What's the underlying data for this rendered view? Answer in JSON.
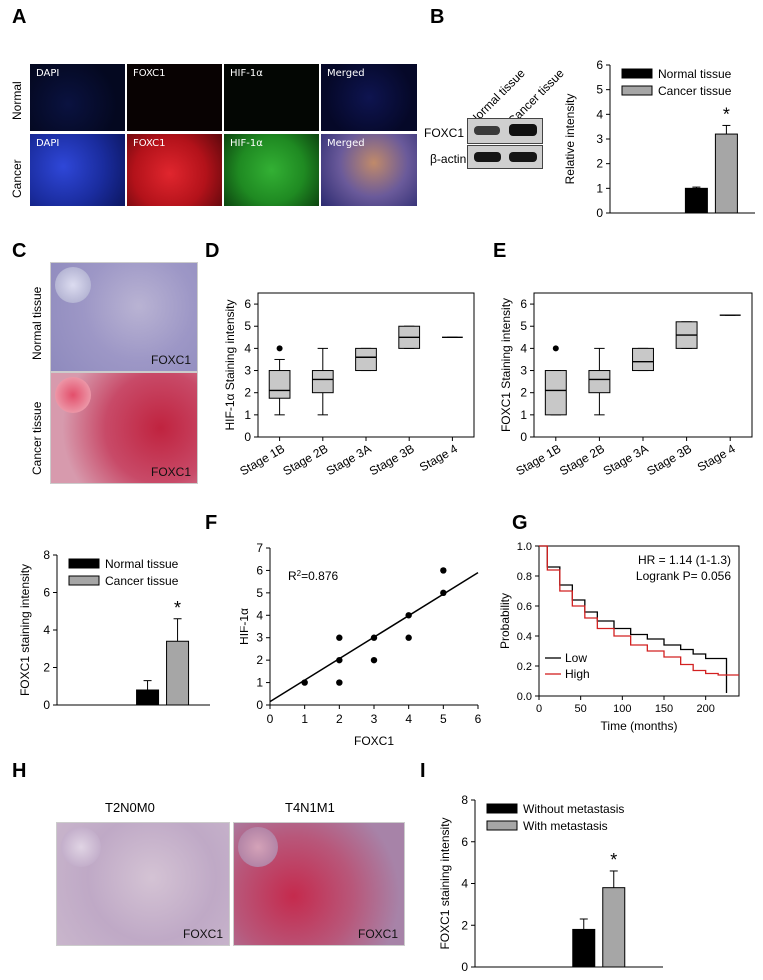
{
  "panels": {
    "A": "A",
    "B": "B",
    "C": "C",
    "D": "D",
    "E": "E",
    "F": "F",
    "G": "G",
    "H": "H",
    "I": "I"
  },
  "panelA": {
    "row_labels": [
      "Normal",
      "Cancer"
    ],
    "col_labels": [
      "DAPI",
      "FOXC1",
      "HIF-1α",
      "Merged"
    ],
    "colors": {
      "dapi": "#1a2c9e",
      "foxc1": "#b3121a",
      "hif": "#1f8a22",
      "merged": "#6a5a9a"
    }
  },
  "panelB": {
    "lanes": [
      "Normal tissue",
      "Cancer tissue"
    ],
    "rows": [
      "FOXC1",
      "β-actin"
    ]
  },
  "panelC": {
    "labels": [
      "Normal tissue",
      "Cancer tissue"
    ],
    "stain": "FOXC1"
  },
  "panelH": {
    "labels": [
      "T2N0M0",
      "T4N1M1"
    ],
    "stain": "FOXC1"
  },
  "panelG": {
    "hr": "HR = 1.14 (1-1.3)",
    "logrank": "Logrank P= 0.056",
    "legend": [
      "Low",
      "High"
    ]
  },
  "chart_data": [
    {
      "id": "B-bar",
      "type": "bar",
      "categories": [
        "Normal tissue",
        "Cancer tissue"
      ],
      "values": [
        1.0,
        3.2
      ],
      "errors": [
        0.05,
        0.35
      ],
      "colors": [
        "#000000",
        "#a6a6a6"
      ],
      "ylabel": "Relative intensity",
      "ylim": [
        0,
        6
      ],
      "yticks": [
        "0",
        "1",
        "2",
        "3",
        "4",
        "5",
        "6"
      ],
      "annotation": "*"
    },
    {
      "id": "C-bar",
      "type": "bar",
      "categories": [
        "Normal tissue",
        "Cancer tissue"
      ],
      "values": [
        0.8,
        3.4
      ],
      "errors": [
        0.5,
        1.2
      ],
      "colors": [
        "#000000",
        "#a6a6a6"
      ],
      "ylabel": "FOXC1 staining intensity",
      "ylim": [
        0,
        8
      ],
      "yticks": [
        "0",
        "2",
        "4",
        "6",
        "8"
      ],
      "annotation": "*"
    },
    {
      "id": "D-box",
      "type": "box",
      "categories": [
        "Stage 1B",
        "Stage 2B",
        "Stage 3A",
        "Stage 3B",
        "Stage 4"
      ],
      "ylabel": "HIF-1α Staining intensity",
      "ylim": [
        0,
        6.5
      ],
      "yticks": [
        "0",
        "1",
        "2",
        "3",
        "4",
        "5",
        "6"
      ],
      "boxes": [
        {
          "min": 1,
          "q1": 1.75,
          "median": 2.1,
          "q3": 3,
          "max": 3.5,
          "outliers": [
            4
          ]
        },
        {
          "min": 1,
          "q1": 2,
          "median": 2.6,
          "q3": 3,
          "max": 4,
          "outliers": []
        },
        {
          "min": 3,
          "q1": 3,
          "median": 3.6,
          "q3": 4,
          "max": 4,
          "outliers": []
        },
        {
          "min": 4,
          "q1": 4,
          "median": 4.5,
          "q3": 5,
          "max": 5,
          "outliers": []
        },
        {
          "min": 4.5,
          "q1": 4.5,
          "median": 4.5,
          "q3": 4.5,
          "max": 4.5,
          "outliers": []
        }
      ]
    },
    {
      "id": "E-box",
      "type": "box",
      "categories": [
        "Stage 1B",
        "Stage 2B",
        "Stage 3A",
        "Stage 3B",
        "Stage 4"
      ],
      "ylabel": "FOXC1 Staining intensity",
      "ylim": [
        0,
        6.5
      ],
      "yticks": [
        "0",
        "1",
        "2",
        "3",
        "4",
        "5",
        "6"
      ],
      "boxes": [
        {
          "min": 1,
          "q1": 1,
          "median": 2.1,
          "q3": 3,
          "max": 3,
          "outliers": [
            4
          ]
        },
        {
          "min": 1,
          "q1": 2,
          "median": 2.6,
          "q3": 3,
          "max": 4,
          "outliers": []
        },
        {
          "min": 3,
          "q1": 3,
          "median": 3.4,
          "q3": 4,
          "max": 4,
          "outliers": []
        },
        {
          "min": 4,
          "q1": 4,
          "median": 4.6,
          "q3": 5.2,
          "max": 5.2,
          "outliers": []
        },
        {
          "min": 5.5,
          "q1": 5.5,
          "median": 5.5,
          "q3": 5.5,
          "max": 5.5,
          "outliers": []
        }
      ]
    },
    {
      "id": "F-scatter",
      "type": "scatter",
      "xlabel": "FOXC1",
      "ylabel": "HIF-1α",
      "xlim": [
        0,
        6
      ],
      "ylim": [
        0,
        7
      ],
      "xticks": [
        "0",
        "1",
        "2",
        "3",
        "4",
        "5",
        "6"
      ],
      "yticks": [
        "0",
        "1",
        "2",
        "3",
        "4",
        "5",
        "6",
        "7"
      ],
      "points": [
        [
          1,
          1
        ],
        [
          2,
          1
        ],
        [
          2,
          2
        ],
        [
          2,
          3
        ],
        [
          3,
          2
        ],
        [
          3,
          3
        ],
        [
          4,
          3
        ],
        [
          4,
          4
        ],
        [
          5,
          5
        ],
        [
          5,
          6
        ]
      ],
      "fit": {
        "x0": 0,
        "y0": 0.15,
        "x1": 6,
        "y1": 5.9
      },
      "r2_prefix": "R",
      "r2_sup": "2",
      "r2_value": "=0.876"
    },
    {
      "id": "G-km",
      "type": "line",
      "xlabel": "Time (months)",
      "ylabel": "Probability",
      "xlim": [
        0,
        240
      ],
      "ylim": [
        0,
        1
      ],
      "xticks": [
        "0",
        "50",
        "100",
        "150",
        "200"
      ],
      "yticks": [
        "0.0",
        "0.2",
        "0.4",
        "0.6",
        "0.8",
        "1.0"
      ],
      "series": [
        {
          "name": "Low",
          "color": "#000000",
          "x": [
            0,
            10,
            25,
            40,
            55,
            70,
            90,
            110,
            130,
            150,
            170,
            185,
            200,
            220,
            225
          ],
          "y": [
            1.0,
            0.86,
            0.74,
            0.64,
            0.56,
            0.5,
            0.45,
            0.41,
            0.38,
            0.34,
            0.31,
            0.28,
            0.25,
            0.25,
            0.02
          ]
        },
        {
          "name": "High",
          "color": "#d22020",
          "x": [
            0,
            10,
            25,
            40,
            55,
            70,
            90,
            110,
            130,
            150,
            170,
            185,
            200,
            215,
            240
          ],
          "y": [
            1.0,
            0.84,
            0.7,
            0.6,
            0.52,
            0.45,
            0.4,
            0.34,
            0.3,
            0.26,
            0.21,
            0.17,
            0.15,
            0.14,
            0.14
          ]
        }
      ]
    },
    {
      "id": "I-bar",
      "type": "bar",
      "categories": [
        "Without metastasis",
        "With metastasis"
      ],
      "values": [
        1.8,
        3.8
      ],
      "errors": [
        0.5,
        0.8
      ],
      "colors": [
        "#000000",
        "#a6a6a6"
      ],
      "ylabel": "FOXC1 staining intensity",
      "ylim": [
        0,
        8
      ],
      "yticks": [
        "0",
        "2",
        "4",
        "6",
        "8"
      ],
      "annotation": "*"
    }
  ]
}
